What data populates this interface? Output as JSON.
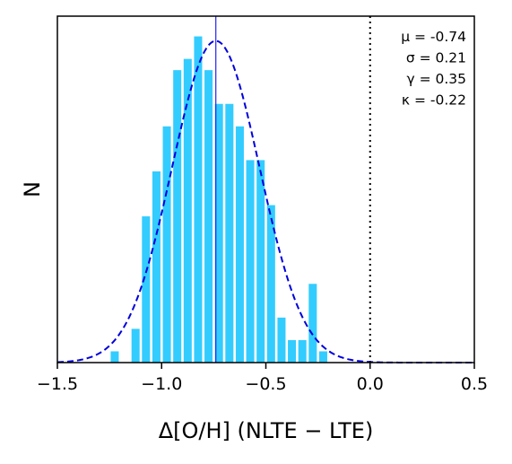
{
  "chart_data": {
    "type": "bar",
    "title": "",
    "xlabel": "Δ[O/H] (NLTE − LTE)",
    "ylabel": "N",
    "xlim": [
      -1.5,
      0.5
    ],
    "ylim": [
      0,
      30.8
    ],
    "bin_width": 0.05,
    "bins": [
      {
        "x": -1.225,
        "count": 1
      },
      {
        "x": -1.125,
        "count": 3
      },
      {
        "x": -1.075,
        "count": 13
      },
      {
        "x": -1.025,
        "count": 17
      },
      {
        "x": -0.975,
        "count": 21
      },
      {
        "x": -0.925,
        "count": 26
      },
      {
        "x": -0.875,
        "count": 27
      },
      {
        "x": -0.825,
        "count": 29
      },
      {
        "x": -0.775,
        "count": 26
      },
      {
        "x": -0.725,
        "count": 23
      },
      {
        "x": -0.675,
        "count": 23
      },
      {
        "x": -0.625,
        "count": 21
      },
      {
        "x": -0.575,
        "count": 18
      },
      {
        "x": -0.525,
        "count": 18
      },
      {
        "x": -0.475,
        "count": 14
      },
      {
        "x": -0.425,
        "count": 4
      },
      {
        "x": -0.375,
        "count": 2
      },
      {
        "x": -0.325,
        "count": 2
      },
      {
        "x": -0.275,
        "count": 7
      },
      {
        "x": -0.225,
        "count": 1
      }
    ],
    "fit_curve": {
      "type": "gaussian",
      "mu": -0.74,
      "sigma": 0.21,
      "peak": 28.6,
      "style": "dashed",
      "color": "#0000dd"
    },
    "mean_line": {
      "x": -0.74,
      "color": "#2222ee"
    },
    "zero_line": {
      "x": 0.0,
      "style": "dotted",
      "color": "#000000"
    },
    "x_ticks": [
      {
        "value": -1.5,
        "label": "−1.5"
      },
      {
        "value": -1.0,
        "label": "−1.0"
      },
      {
        "value": -0.5,
        "label": "−0.5"
      },
      {
        "value": 0.0,
        "label": "0.0"
      },
      {
        "value": 0.5,
        "label": "0.5"
      }
    ],
    "stats": [
      "μ = -0.74",
      "σ = 0.21",
      "γ = 0.35",
      "κ = -0.22"
    ],
    "bar_color": "#33ccff"
  }
}
